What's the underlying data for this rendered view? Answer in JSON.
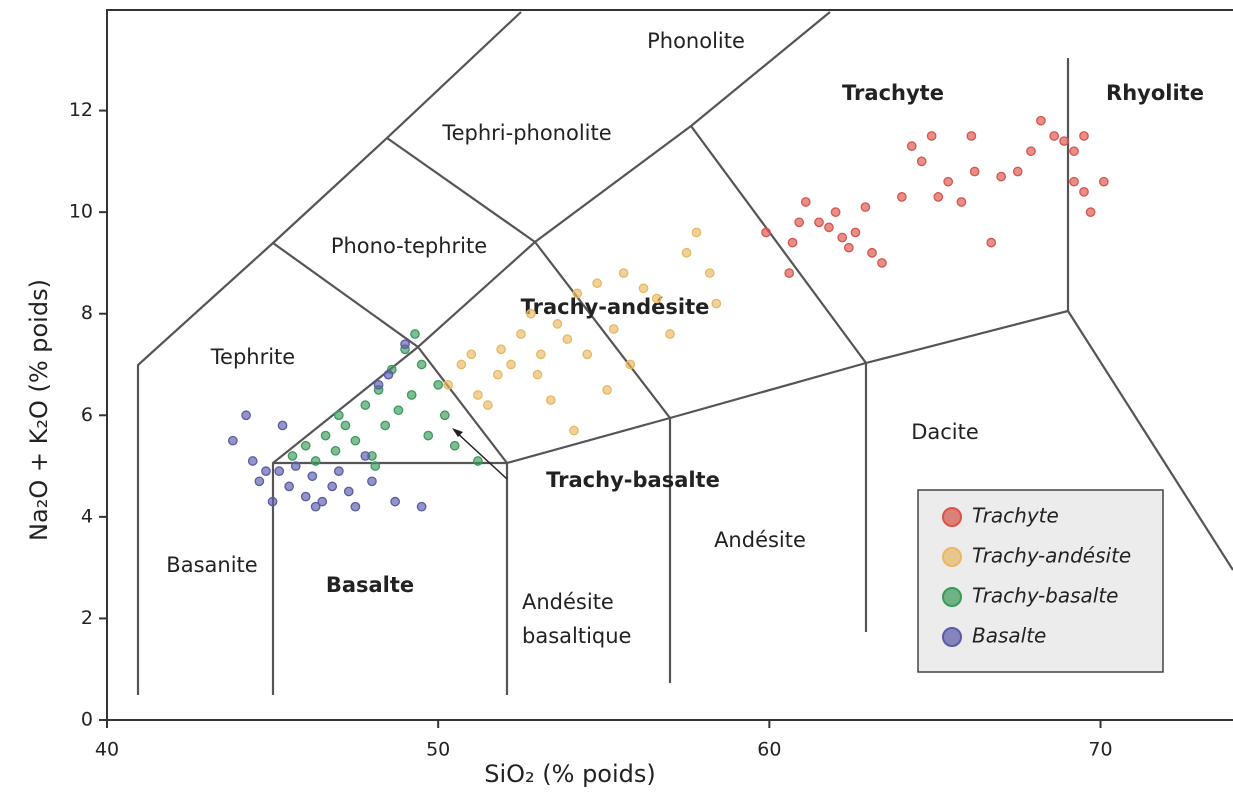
{
  "chart_data": {
    "type": "scatter",
    "xlabel": "SiO₂ (% poids)",
    "ylabel": "Na₂O + K₂O (% poids)",
    "xlim": [
      40,
      74
    ],
    "ylim": [
      0,
      14
    ],
    "xticks": [
      40,
      50,
      60,
      70
    ],
    "yticks": [
      0,
      2,
      4,
      6,
      8,
      10,
      12
    ],
    "legend": "lower right",
    "annotations": [
      "Phonolite",
      "Tephri-phonolite",
      "Phono-tephrite",
      "Trachyte",
      "Rhyolite",
      "Tephrite",
      "Trachy-andésite",
      "Trachy-basalte",
      "Dacite",
      "Andésite",
      "Basanite",
      "Basalte",
      "Andésite basaltique"
    ],
    "series": [
      {
        "name": "Trachyte",
        "color": "#d9534a",
        "x": [
          59.9,
          60.6,
          60.7,
          60.9,
          61.1,
          61.5,
          61.8,
          62.0,
          62.2,
          62.4,
          62.6,
          62.9,
          63.1,
          63.4,
          64.0,
          64.3,
          64.6,
          64.9,
          65.1,
          65.4,
          65.8,
          66.2,
          66.7,
          67.0,
          67.5,
          67.9,
          68.2,
          68.6,
          68.9,
          69.2,
          69.5,
          69.2,
          69.5,
          70.1,
          69.7,
          66.1
        ],
        "values": [
          9.6,
          8.8,
          9.4,
          9.8,
          10.2,
          9.8,
          9.7,
          10.0,
          9.5,
          9.3,
          9.6,
          10.1,
          9.2,
          9.0,
          10.3,
          11.3,
          11.0,
          11.5,
          10.3,
          10.6,
          10.2,
          10.8,
          9.4,
          10.7,
          10.8,
          11.2,
          11.8,
          11.5,
          11.4,
          11.2,
          11.5,
          10.6,
          10.4,
          10.6,
          10.0,
          11.5
        ]
      },
      {
        "name": "Trachy-andésite",
        "color": "#e8b864",
        "x": [
          50.3,
          50.7,
          51.0,
          51.2,
          51.5,
          51.9,
          52.2,
          52.5,
          52.8,
          53.1,
          53.4,
          53.6,
          53.9,
          54.2,
          54.5,
          54.8,
          55.1,
          55.3,
          55.6,
          55.8,
          56.2,
          56.6,
          57.0,
          57.5,
          57.8,
          58.2,
          58.4,
          54.1,
          53.0,
          51.8
        ],
        "values": [
          6.6,
          7.0,
          7.2,
          6.4,
          6.2,
          7.3,
          7.0,
          7.6,
          8.0,
          7.2,
          6.3,
          7.8,
          7.5,
          8.4,
          7.2,
          8.6,
          6.5,
          7.7,
          8.8,
          7.0,
          8.5,
          8.3,
          7.6,
          9.2,
          9.6,
          8.8,
          8.2,
          5.7,
          6.8,
          6.8
        ]
      },
      {
        "name": "Trachy-basalte",
        "color": "#3a9a5a",
        "x": [
          45.6,
          46.0,
          46.3,
          46.6,
          46.9,
          47.2,
          47.5,
          47.8,
          48.0,
          48.2,
          48.4,
          48.6,
          48.8,
          49.0,
          49.2,
          49.5,
          49.7,
          50.0,
          50.2,
          50.5,
          51.2,
          48.1,
          47.0,
          49.3
        ],
        "values": [
          5.2,
          5.4,
          5.1,
          5.6,
          5.3,
          5.8,
          5.5,
          6.2,
          5.2,
          6.5,
          5.8,
          6.9,
          6.1,
          7.3,
          6.4,
          7.0,
          5.6,
          6.6,
          6.0,
          5.4,
          5.1,
          5.0,
          6.0,
          7.6
        ]
      },
      {
        "name": "Basalte",
        "color": "#5a5aa8",
        "x": [
          43.8,
          44.2,
          44.4,
          44.6,
          44.8,
          45.0,
          45.3,
          45.5,
          45.7,
          46.0,
          46.2,
          46.5,
          46.8,
          47.0,
          47.3,
          47.5,
          47.8,
          48.2,
          48.5,
          48.0,
          48.7,
          49.0,
          49.5,
          46.3,
          45.2
        ],
        "values": [
          5.5,
          6.0,
          5.1,
          4.7,
          4.9,
          4.3,
          5.8,
          4.6,
          5.0,
          4.4,
          4.8,
          4.3,
          4.6,
          4.9,
          4.5,
          4.2,
          5.2,
          6.6,
          6.8,
          4.7,
          4.3,
          7.4,
          4.2,
          4.2,
          4.9
        ]
      }
    ]
  }
}
